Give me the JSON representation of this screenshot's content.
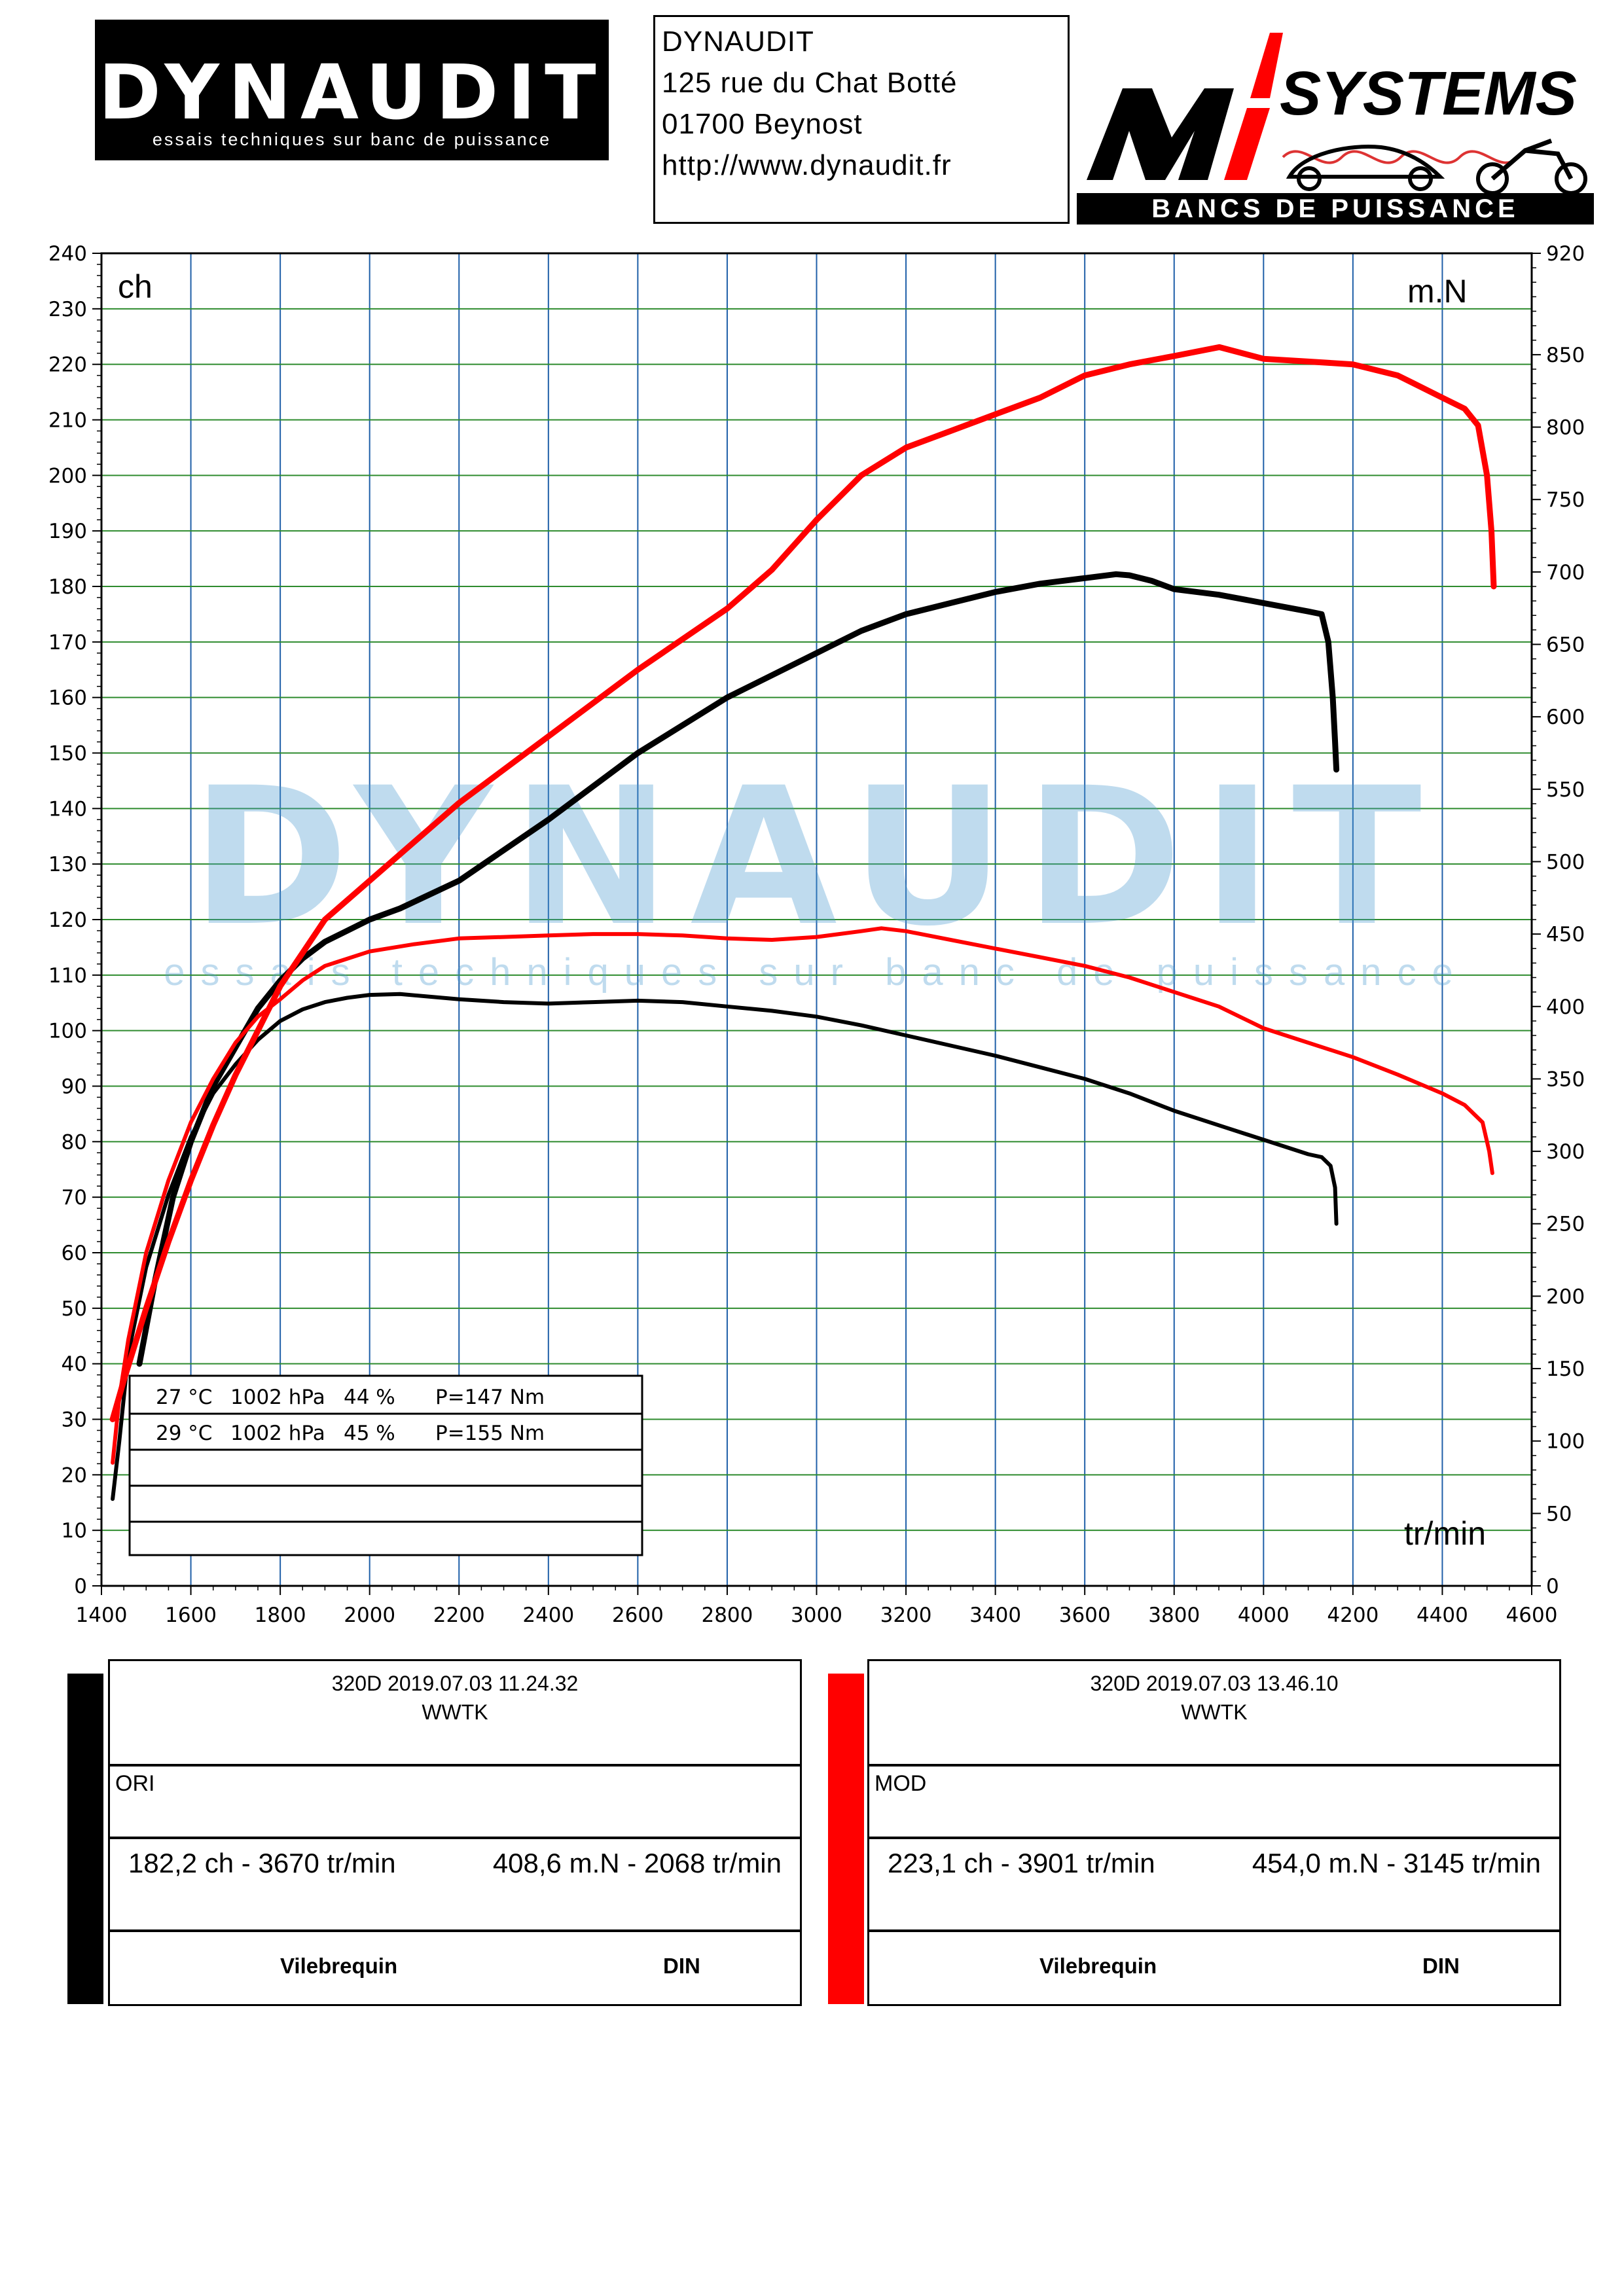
{
  "header": {
    "logo_text": "DYNAUDIT",
    "logo_tagline": "essais techniques sur banc de puissance",
    "address": [
      "DYNAUDIT",
      "125 rue du Chat Botté",
      "01700 Beynost",
      "http://www.dynaudit.fr"
    ],
    "partner_logo_text": "SYSTEMS",
    "partner_logo_tagline": "BANCS DE PUISSANCE"
  },
  "watermark": {
    "text": "DYNAUDIT",
    "tagline": "essais techniques sur banc de puissance"
  },
  "chart_data": {
    "type": "line",
    "y_left_label": "ch",
    "y_right_label": "m.N",
    "x_label": "tr/min",
    "xlim": [
      1400,
      4600
    ],
    "ylim_left": [
      0,
      240
    ],
    "ylim_right": [
      0,
      920
    ],
    "x_ticks": [
      "1400",
      "1600",
      "1800",
      "2000",
      "2200",
      "2400",
      "2600",
      "2800",
      "3000",
      "3200",
      "3400",
      "3600",
      "3800",
      "4000",
      "4200",
      "4400",
      "4600"
    ],
    "y_left_ticks": [
      "0",
      "10",
      "20",
      "30",
      "40",
      "50",
      "60",
      "70",
      "80",
      "90",
      "100",
      "110",
      "120",
      "130",
      "140",
      "150",
      "160",
      "170",
      "180",
      "190",
      "200",
      "210",
      "220",
      "230",
      "240"
    ],
    "y_right_ticks": [
      "0",
      "50",
      "100",
      "150",
      "200",
      "250",
      "300",
      "350",
      "400",
      "450",
      "500",
      "550",
      "600",
      "650",
      "700",
      "750",
      "800",
      "850",
      "920"
    ],
    "grid": true,
    "series": [
      {
        "name": "ORI",
        "measure": "power",
        "axis": "left",
        "color": "#000000",
        "points": [
          [
            1485,
            40
          ],
          [
            1520,
            55
          ],
          [
            1560,
            70
          ],
          [
            1600,
            80
          ],
          [
            1650,
            90
          ],
          [
            1700,
            97
          ],
          [
            1750,
            104
          ],
          [
            1800,
            109
          ],
          [
            1850,
            113
          ],
          [
            1900,
            116
          ],
          [
            1950,
            118
          ],
          [
            2000,
            120
          ],
          [
            2068,
            122
          ],
          [
            2200,
            127
          ],
          [
            2400,
            138
          ],
          [
            2600,
            150
          ],
          [
            2800,
            160
          ],
          [
            3000,
            168
          ],
          [
            3100,
            172
          ],
          [
            3200,
            175
          ],
          [
            3300,
            177
          ],
          [
            3400,
            179
          ],
          [
            3500,
            180.5
          ],
          [
            3600,
            181.5
          ],
          [
            3670,
            182.2
          ],
          [
            3700,
            182
          ],
          [
            3750,
            181
          ],
          [
            3800,
            179.5
          ],
          [
            3900,
            178.5
          ],
          [
            4000,
            177
          ],
          [
            4100,
            175.5
          ],
          [
            4130,
            175
          ],
          [
            4145,
            170
          ],
          [
            4155,
            160
          ],
          [
            4160,
            152
          ],
          [
            4163,
            147
          ]
        ]
      },
      {
        "name": "ORI",
        "measure": "torque",
        "axis": "right",
        "color": "#000000",
        "points": [
          [
            1425,
            60
          ],
          [
            1440,
            100
          ],
          [
            1460,
            160
          ],
          [
            1500,
            220
          ],
          [
            1550,
            270
          ],
          [
            1600,
            310
          ],
          [
            1650,
            340
          ],
          [
            1700,
            360
          ],
          [
            1750,
            377
          ],
          [
            1800,
            390
          ],
          [
            1850,
            398
          ],
          [
            1900,
            403
          ],
          [
            1950,
            406
          ],
          [
            2000,
            408
          ],
          [
            2068,
            408.6
          ],
          [
            2200,
            405
          ],
          [
            2300,
            403
          ],
          [
            2400,
            402
          ],
          [
            2500,
            403
          ],
          [
            2600,
            404
          ],
          [
            2700,
            403
          ],
          [
            2800,
            400
          ],
          [
            2900,
            397
          ],
          [
            3000,
            393
          ],
          [
            3100,
            387
          ],
          [
            3200,
            380
          ],
          [
            3300,
            373
          ],
          [
            3400,
            366
          ],
          [
            3500,
            358
          ],
          [
            3600,
            350
          ],
          [
            3700,
            340
          ],
          [
            3800,
            328
          ],
          [
            3900,
            318
          ],
          [
            4000,
            308
          ],
          [
            4100,
            298
          ],
          [
            4130,
            296
          ],
          [
            4150,
            290
          ],
          [
            4160,
            275
          ],
          [
            4163,
            250
          ]
        ]
      },
      {
        "name": "MOD",
        "measure": "power",
        "axis": "left",
        "color": "#ff0000",
        "points": [
          [
            1425,
            30
          ],
          [
            1450,
            37
          ],
          [
            1500,
            50
          ],
          [
            1550,
            62
          ],
          [
            1600,
            73
          ],
          [
            1650,
            83
          ],
          [
            1700,
            92
          ],
          [
            1750,
            100
          ],
          [
            1800,
            108
          ],
          [
            1900,
            120
          ],
          [
            2000,
            127
          ],
          [
            2200,
            141
          ],
          [
            2400,
            153
          ],
          [
            2600,
            165
          ],
          [
            2800,
            176
          ],
          [
            2900,
            183
          ],
          [
            3000,
            192
          ],
          [
            3100,
            200
          ],
          [
            3200,
            205
          ],
          [
            3300,
            208
          ],
          [
            3400,
            211
          ],
          [
            3500,
            214
          ],
          [
            3600,
            218
          ],
          [
            3700,
            220
          ],
          [
            3800,
            221.5
          ],
          [
            3901,
            223.1
          ],
          [
            4000,
            221
          ],
          [
            4100,
            220.5
          ],
          [
            4200,
            220
          ],
          [
            4300,
            218
          ],
          [
            4400,
            214
          ],
          [
            4450,
            212
          ],
          [
            4480,
            209
          ],
          [
            4500,
            200
          ],
          [
            4510,
            190
          ],
          [
            4515,
            180
          ]
        ]
      },
      {
        "name": "MOD",
        "measure": "torque",
        "axis": "right",
        "color": "#ff0000",
        "points": [
          [
            1425,
            85
          ],
          [
            1440,
            130
          ],
          [
            1460,
            170
          ],
          [
            1500,
            230
          ],
          [
            1550,
            280
          ],
          [
            1600,
            320
          ],
          [
            1650,
            350
          ],
          [
            1700,
            375
          ],
          [
            1750,
            393
          ],
          [
            1800,
            405
          ],
          [
            1850,
            418
          ],
          [
            1900,
            428
          ],
          [
            2000,
            438
          ],
          [
            2100,
            443
          ],
          [
            2200,
            447
          ],
          [
            2300,
            448
          ],
          [
            2400,
            449
          ],
          [
            2500,
            450
          ],
          [
            2600,
            450
          ],
          [
            2700,
            449
          ],
          [
            2800,
            447
          ],
          [
            2900,
            446
          ],
          [
            3000,
            448
          ],
          [
            3100,
            452
          ],
          [
            3145,
            454
          ],
          [
            3200,
            452
          ],
          [
            3300,
            446
          ],
          [
            3400,
            440
          ],
          [
            3500,
            434
          ],
          [
            3600,
            428
          ],
          [
            3700,
            420
          ],
          [
            3800,
            410
          ],
          [
            3900,
            400
          ],
          [
            4000,
            385
          ],
          [
            4100,
            375
          ],
          [
            4200,
            365
          ],
          [
            4300,
            353
          ],
          [
            4400,
            340
          ],
          [
            4450,
            332
          ],
          [
            4490,
            320
          ],
          [
            4505,
            300
          ],
          [
            4512,
            285
          ]
        ]
      }
    ]
  },
  "conditions_table": {
    "rows": [
      {
        "temp": "27 °C",
        "pressure": "1002 hPa",
        "humidity": "44 %",
        "p": "P=147 Nm"
      },
      {
        "temp": "29 °C",
        "pressure": "1002 hPa",
        "humidity": "45 %",
        "p": "P=155 Nm"
      }
    ]
  },
  "panels": [
    {
      "id": "ori",
      "color": "#000000",
      "title": "320D   2019.07.03 11.24.32",
      "subtitle": "WWTK",
      "label": "ORI",
      "power": "182,2 ch - 3670 tr/min",
      "torque": "408,6 m.N - 2068 tr/min",
      "foot_left": "Vilebrequin",
      "foot_right": "DIN"
    },
    {
      "id": "mod",
      "color": "#ff0000",
      "title": "320D   2019.07.03 13.46.10",
      "subtitle": "WWTK",
      "label": "MOD",
      "power": "223,1 ch - 3901 tr/min",
      "torque": "454,0 m.N - 3145 tr/min",
      "foot_left": "Vilebrequin",
      "foot_right": "DIN"
    }
  ]
}
